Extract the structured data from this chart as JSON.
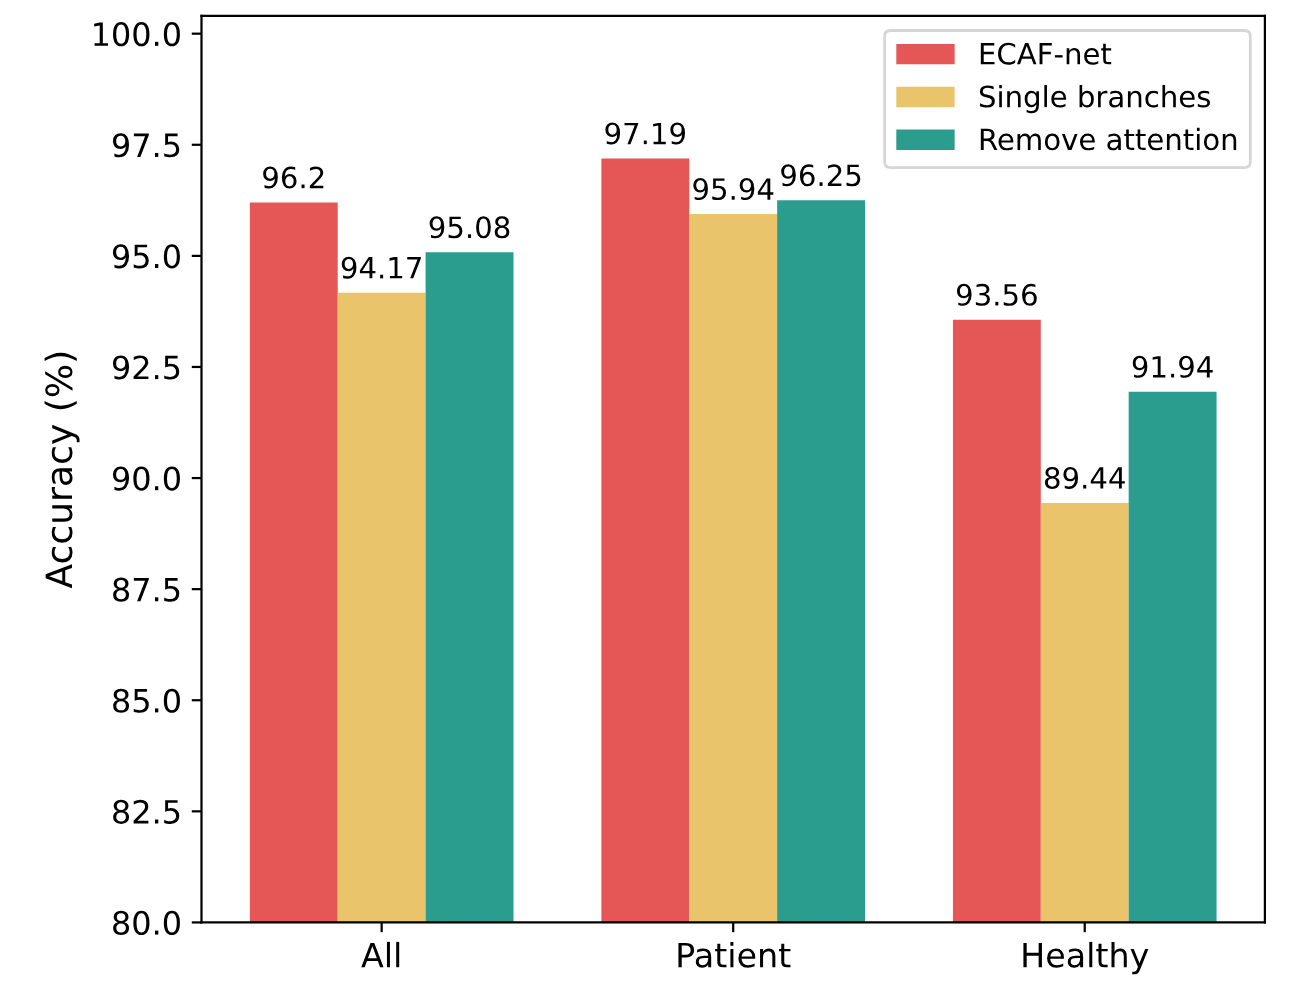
{
  "chart_data": {
    "type": "bar",
    "ylabel": "Accuracy (%)",
    "categories": [
      "All",
      "Patient",
      "Healthy"
    ],
    "series": [
      {
        "name": "ECAF-net",
        "color": "#e45756",
        "values": [
          96.2,
          97.19,
          93.56
        ]
      },
      {
        "name": "Single branches",
        "color": "#e9c46a",
        "values": [
          94.17,
          95.94,
          89.44
        ]
      },
      {
        "name": "Remove attention",
        "color": "#2a9d8f",
        "values": [
          95.08,
          96.25,
          91.94
        ]
      }
    ],
    "ylim": [
      80.0,
      100.4
    ],
    "yticks": [
      {
        "value": 80,
        "label": "80.0"
      },
      82.5,
      {
        "value": 85,
        "label": "85.0"
      },
      87.5,
      {
        "value": 90,
        "label": "90.0"
      },
      92.5,
      {
        "value": 95,
        "label": "95.0"
      },
      97.5,
      {
        "value": 100,
        "label": "100.0"
      }
    ],
    "data_labels": true,
    "legend": "top right",
    "grid": false
  }
}
